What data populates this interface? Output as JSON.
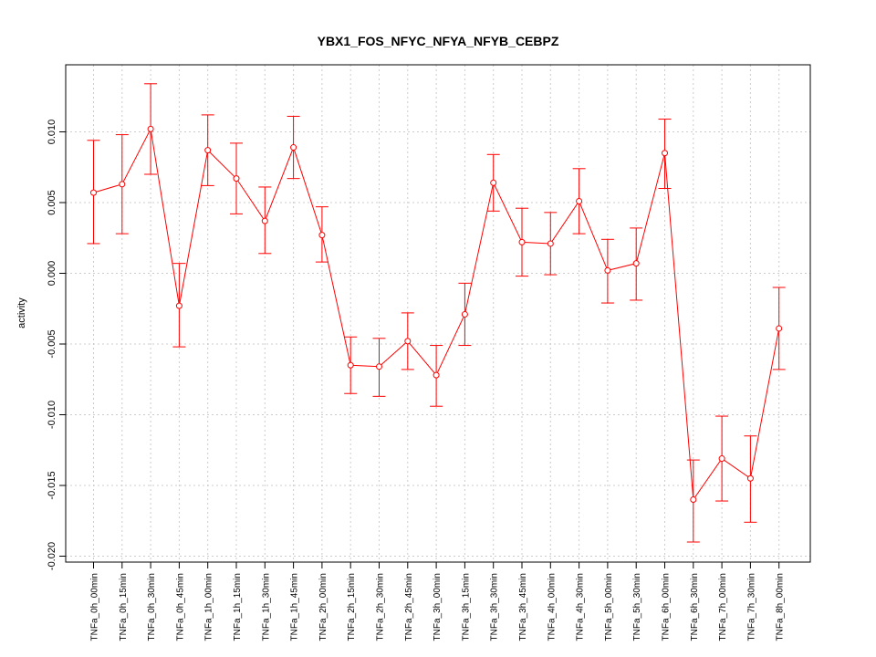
{
  "chart_data": {
    "type": "line",
    "title": "YBX1_FOS_NFYC_NFYA_NFYB_CEBPZ",
    "xlabel": "",
    "ylabel": "activity",
    "ylim": [
      -0.0205,
      0.0147
    ],
    "yticks": [
      -0.02,
      -0.015,
      -0.01,
      -0.005,
      0.0,
      0.005,
      0.01
    ],
    "ytick_labels": [
      "-0.020",
      "-0.015",
      "-0.010",
      "-0.005",
      "0.000",
      "0.005",
      "0.010"
    ],
    "grid": true,
    "reference_line_y": 0,
    "colors": {
      "series": "#ff0000",
      "grid": "#cccccc",
      "axis": "#000000"
    },
    "categories": [
      "TNFa_0h_00min",
      "TNFa_0h_15min",
      "TNFa_0h_30min",
      "TNFa_0h_45min",
      "TNFa_1h_00min",
      "TNFa_1h_15min",
      "TNFa_1h_30min",
      "TNFa_1h_45min",
      "TNFa_2h_00min",
      "TNFa_2h_15min",
      "TNFa_2h_30min",
      "TNFa_2h_45min",
      "TNFa_3h_00min",
      "TNFa_3h_15min",
      "TNFa_3h_30min",
      "TNFa_3h_45min",
      "TNFa_4h_00min",
      "TNFa_4h_30min",
      "TNFa_5h_00min",
      "TNFa_5h_30min",
      "TNFa_6h_00min",
      "TNFa_6h_30min",
      "TNFa_7h_00min",
      "TNFa_7h_30min",
      "TNFa_8h_00min"
    ],
    "series": [
      {
        "values": [
          0.0057,
          0.0063,
          0.0102,
          -0.0023,
          0.0087,
          0.0067,
          0.0037,
          0.0089,
          0.0027,
          -0.0065,
          -0.0066,
          -0.0048,
          -0.0072,
          -0.0029,
          0.0064,
          0.0022,
          0.0021,
          0.0051,
          0.0002,
          0.0007,
          0.0085,
          -0.016,
          -0.0131,
          -0.0145,
          -0.0039
        ],
        "upper": [
          0.0094,
          0.0098,
          0.0134,
          0.0007,
          0.0112,
          0.0092,
          0.0061,
          0.0111,
          0.0047,
          -0.0045,
          -0.0046,
          -0.0028,
          -0.0051,
          -0.0007,
          0.0084,
          0.0046,
          0.0043,
          0.0074,
          0.0024,
          0.0032,
          0.0109,
          -0.0132,
          -0.0101,
          -0.0115,
          -0.001
        ],
        "lower": [
          0.0021,
          0.0028,
          0.007,
          -0.0052,
          0.0062,
          0.0042,
          0.0014,
          0.0067,
          0.0008,
          -0.0085,
          -0.0087,
          -0.0068,
          -0.0094,
          -0.0051,
          0.0044,
          -0.0002,
          -0.0001,
          0.0028,
          -0.0021,
          -0.0019,
          0.006,
          -0.019,
          -0.0161,
          -0.0176,
          -0.0068
        ]
      }
    ]
  }
}
